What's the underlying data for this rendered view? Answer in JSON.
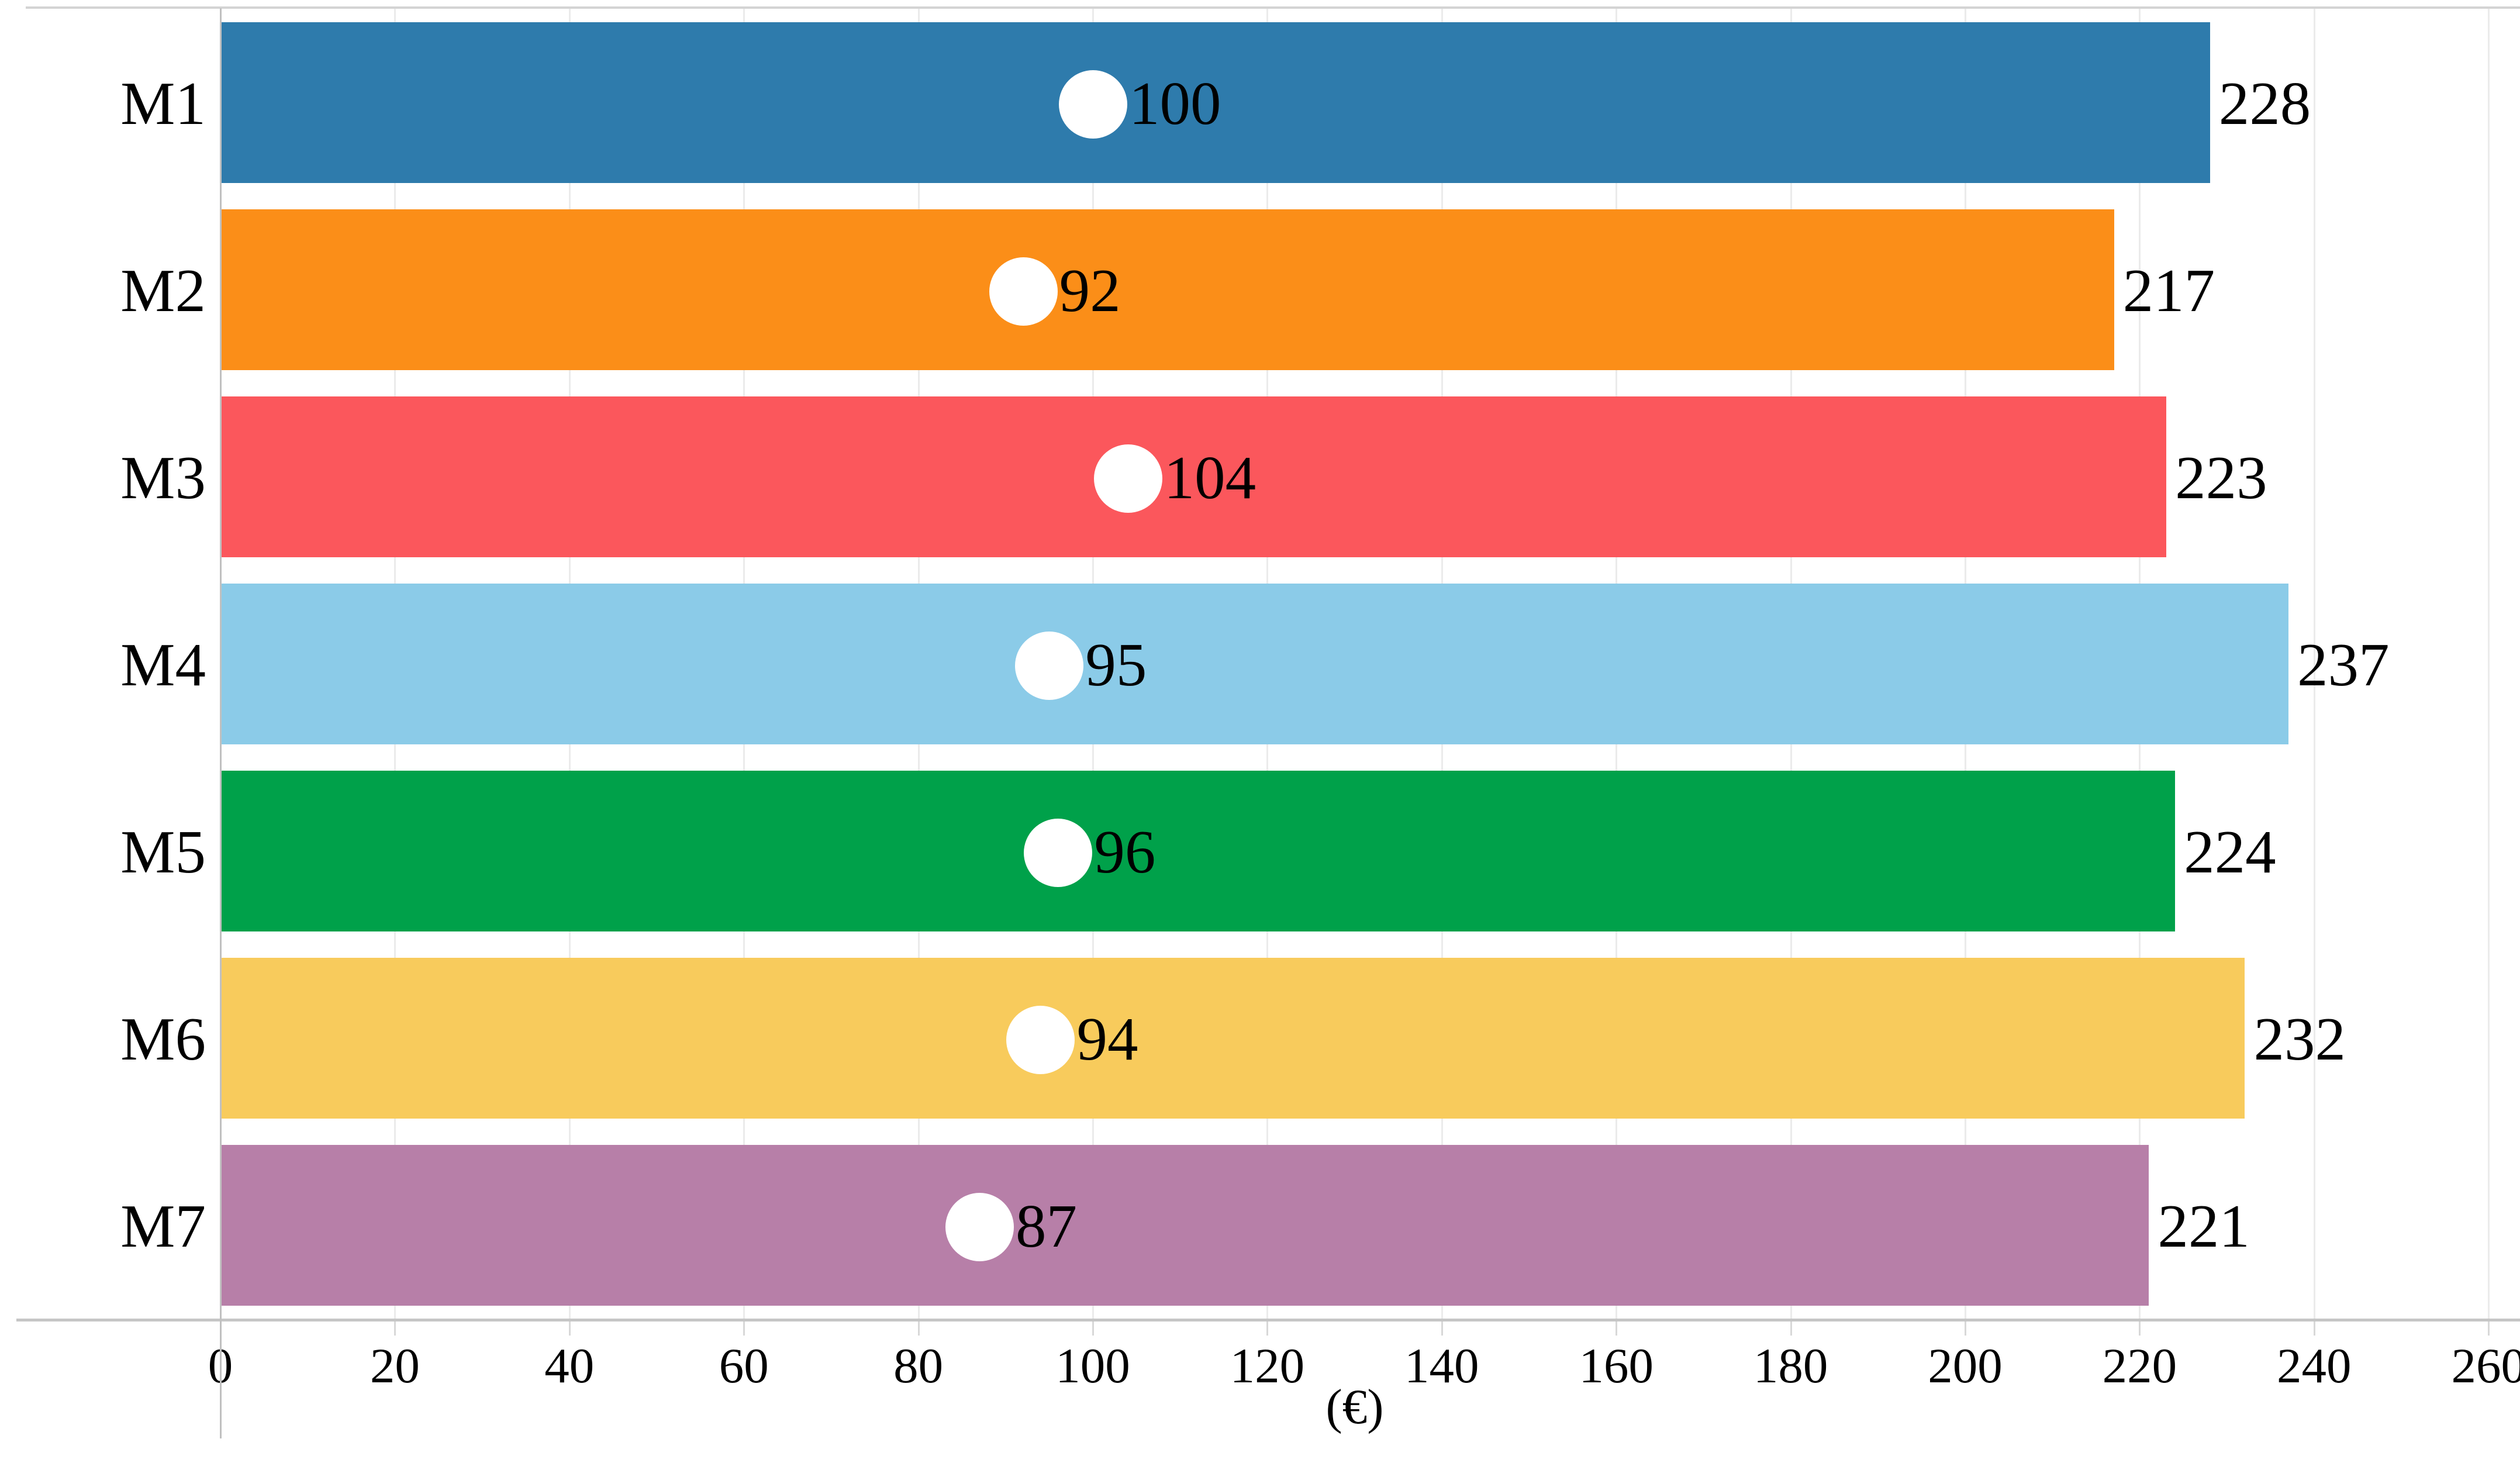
{
  "chart_data": {
    "type": "bar",
    "orientation": "horizontal",
    "title": "",
    "xlabel": "(€)",
    "xlim": [
      0,
      260
    ],
    "xticks": [
      0,
      20,
      40,
      60,
      80,
      100,
      120,
      140,
      160,
      180,
      200,
      220,
      240,
      260
    ],
    "grid": true,
    "legend": null,
    "categories": [
      "M1",
      "M2",
      "M3",
      "M4",
      "M5",
      "M6",
      "M7"
    ],
    "series": [
      {
        "name": "bar-values",
        "values": [
          228,
          217,
          223,
          237,
          224,
          232,
          221
        ]
      },
      {
        "name": "dot-values",
        "values": [
          100,
          92,
          104,
          95,
          96,
          94,
          87
        ]
      }
    ],
    "bar_colors": [
      "#2E7BAC",
      "#FB8E18",
      "#FB575C",
      "#8BCBE8",
      "#00A14A",
      "#F8CB5C",
      "#B77FA8"
    ],
    "dot_color": "#FFFFFF",
    "text_color": "#000000",
    "grid_color": "#EBEBEB",
    "axis_color": "#C0C0C0"
  }
}
